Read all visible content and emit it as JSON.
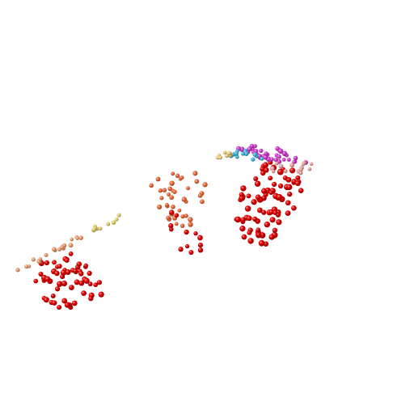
{
  "scene": {
    "background": "#ffffff",
    "description_type": "3d-point-cloud",
    "point_style": "shaded-sphere"
  },
  "groups": [
    {
      "name": "left-cluster-red",
      "color": "#e00000",
      "count": 60
    },
    {
      "name": "left-cluster-peach-edge",
      "color": "#f0a070",
      "count": 18
    },
    {
      "name": "left-cluster-yellow-edge",
      "color": "#e8d070",
      "count": 10
    },
    {
      "name": "middle-cluster-orange",
      "color": "#ee6a3a",
      "count": 40
    },
    {
      "name": "middle-cluster-red",
      "color": "#e00000",
      "count": 12
    },
    {
      "name": "right-cluster-red",
      "color": "#e00000",
      "count": 85
    },
    {
      "name": "right-cluster-magenta",
      "color": "#d43ccf",
      "count": 35
    },
    {
      "name": "right-cluster-cyan",
      "color": "#40b8e0",
      "count": 14
    },
    {
      "name": "right-cluster-peach",
      "color": "#f0a0a0",
      "count": 14
    },
    {
      "name": "right-cluster-yellow",
      "color": "#f0d080",
      "count": 8
    }
  ]
}
